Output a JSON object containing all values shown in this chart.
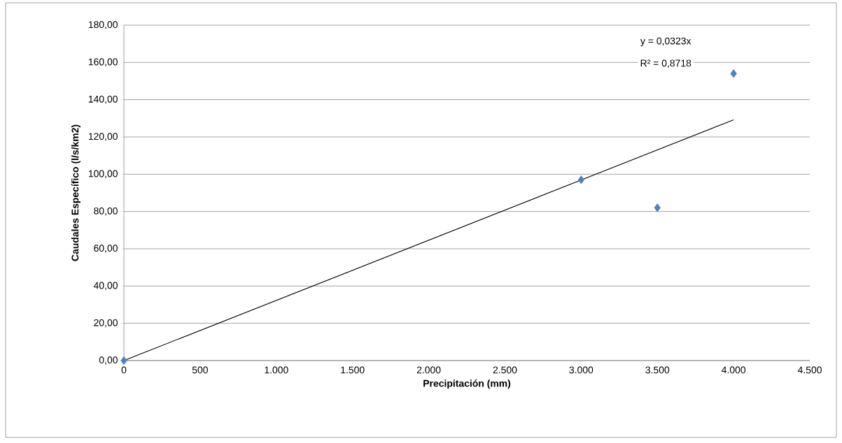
{
  "chart_data": {
    "type": "scatter",
    "xlabel": "Precipitación (mm)",
    "ylabel": "Caudales Específico  (l/s/km2)",
    "series": [
      {
        "color": "#4f81bd",
        "marker": "diamond",
        "x": [
          0,
          3000,
          3500,
          4000
        ],
        "values": [
          0,
          97,
          82,
          154
        ]
      },
      {
        "type": "line",
        "color": "#000000",
        "marker": "none",
        "x": [
          0,
          4000
        ],
        "values": [
          0,
          129.2
        ]
      }
    ],
    "annotations": [
      "y = 0,0323x",
      "R² = 0,8718"
    ],
    "xlim": [
      0,
      4500
    ],
    "xticks": [
      0,
      500,
      {
        "value": 1000,
        "label": "1.000"
      },
      {
        "value": 1500,
        "label": "1.500"
      },
      {
        "value": 2000,
        "label": "2.000"
      },
      {
        "value": 2500,
        "label": "2.500"
      },
      {
        "value": 3000,
        "label": "3.000"
      },
      {
        "value": 3500,
        "label": "3.500"
      },
      {
        "value": 4000,
        "label": "4.000"
      },
      {
        "value": 4500,
        "label": "4.500"
      }
    ],
    "ylim": [
      0,
      180
    ],
    "yticks": [
      {
        "value": 0,
        "label": "0,00"
      },
      {
        "value": 20,
        "label": "20,00"
      },
      {
        "value": 40,
        "label": "40,00"
      },
      {
        "value": 60,
        "label": "60,00"
      },
      {
        "value": 80,
        "label": "80,00"
      },
      {
        "value": 100,
        "label": "100,00"
      },
      {
        "value": 120,
        "label": "120,00"
      },
      {
        "value": 140,
        "label": "140,00"
      },
      {
        "value": 160,
        "label": "160,00"
      },
      {
        "value": 180,
        "label": "180,00"
      }
    ],
    "grid": "y"
  }
}
